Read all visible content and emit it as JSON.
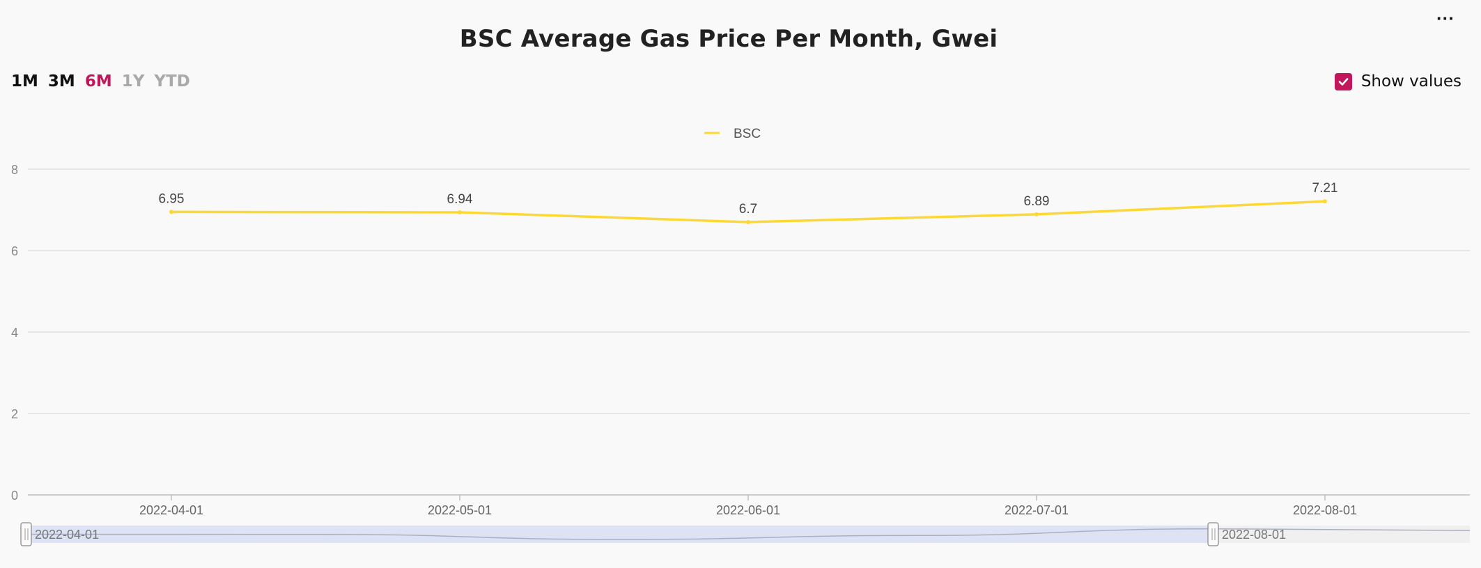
{
  "header": {
    "title": "BSC Average Gas Price Per Month, Gwei",
    "menu_label": "···"
  },
  "range_buttons": [
    {
      "label": "1M",
      "state": "on"
    },
    {
      "label": "3M",
      "state": "on"
    },
    {
      "label": "6M",
      "state": "active"
    },
    {
      "label": "1Y",
      "state": "off"
    },
    {
      "label": "YTD",
      "state": "off"
    }
  ],
  "show_values": {
    "label": "Show values",
    "checked": true
  },
  "colors": {
    "line": "#fdd835",
    "accent": "#c2185b",
    "grid": "#e0e0e0",
    "navigator": "#dde3f5"
  },
  "chart_data": {
    "type": "line",
    "title": "BSC Average Gas Price Per Month, Gwei",
    "x": [
      "2022-04-01",
      "2022-05-01",
      "2022-06-01",
      "2022-07-01",
      "2022-08-01"
    ],
    "series": [
      {
        "name": "BSC",
        "values": [
          6.95,
          6.94,
          6.7,
          6.89,
          7.21
        ]
      }
    ],
    "value_labels": [
      "6.95",
      "6.94",
      "6.7",
      "6.89",
      "7.21"
    ],
    "y_ticks": [
      "0",
      "2",
      "4",
      "6",
      "8"
    ],
    "ylim": [
      0,
      8
    ],
    "grid": true,
    "legend_position": "top-center",
    "navigator": {
      "start_label": "2022-04-01",
      "end_label": "2022-08-01"
    }
  }
}
